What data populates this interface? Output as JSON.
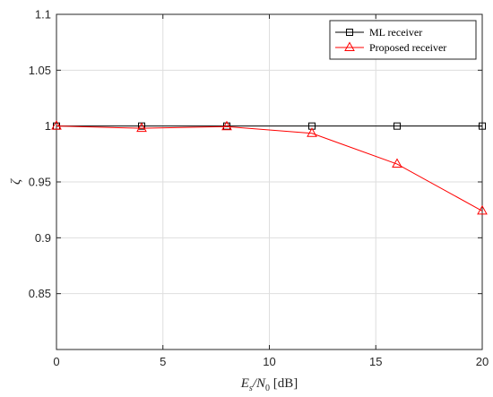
{
  "chart_data": {
    "type": "line",
    "title": "",
    "xlabel_parts": [
      "E",
      "s",
      "/N",
      "0",
      " [dB]"
    ],
    "ylabel": "ζ",
    "xlim": [
      0,
      20
    ],
    "ylim": [
      0.8,
      1.1
    ],
    "x_ticks": [
      "0",
      "5",
      "10",
      "15",
      "20"
    ],
    "y_ticks": [
      "0.85",
      "0.9",
      "0.95",
      "1",
      "1.05",
      "1.1"
    ],
    "grid": true,
    "legend_position": "top-right",
    "series": [
      {
        "name": "ML receiver",
        "color": "#000000",
        "marker": "square",
        "x": [
          0,
          4,
          8,
          12,
          16,
          20
        ],
        "y": [
          1.0,
          1.0,
          1.0,
          1.0,
          1.0,
          1.0
        ]
      },
      {
        "name": "Proposed receiver",
        "color": "#ff0000",
        "marker": "triangle",
        "x": [
          0,
          4,
          8,
          12,
          16,
          20
        ],
        "y": [
          1.0,
          0.998,
          0.9995,
          0.9935,
          0.966,
          0.924
        ]
      }
    ]
  }
}
